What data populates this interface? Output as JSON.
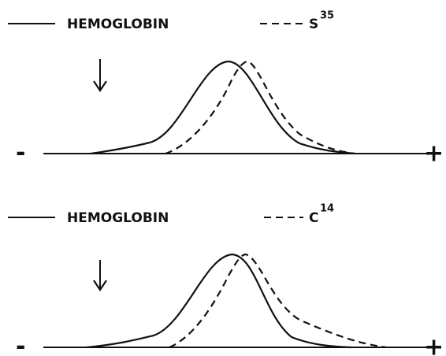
{
  "panels": [
    {
      "solid_label": "HEMOGLOBIN",
      "dashed_label": "S",
      "dashed_sup": "35",
      "minus": "-",
      "plus": "+"
    },
    {
      "solid_label": "HEMOGLOBIN",
      "dashed_label": "C",
      "dashed_sup": "14",
      "minus": "-",
      "plus": "+"
    }
  ]
}
